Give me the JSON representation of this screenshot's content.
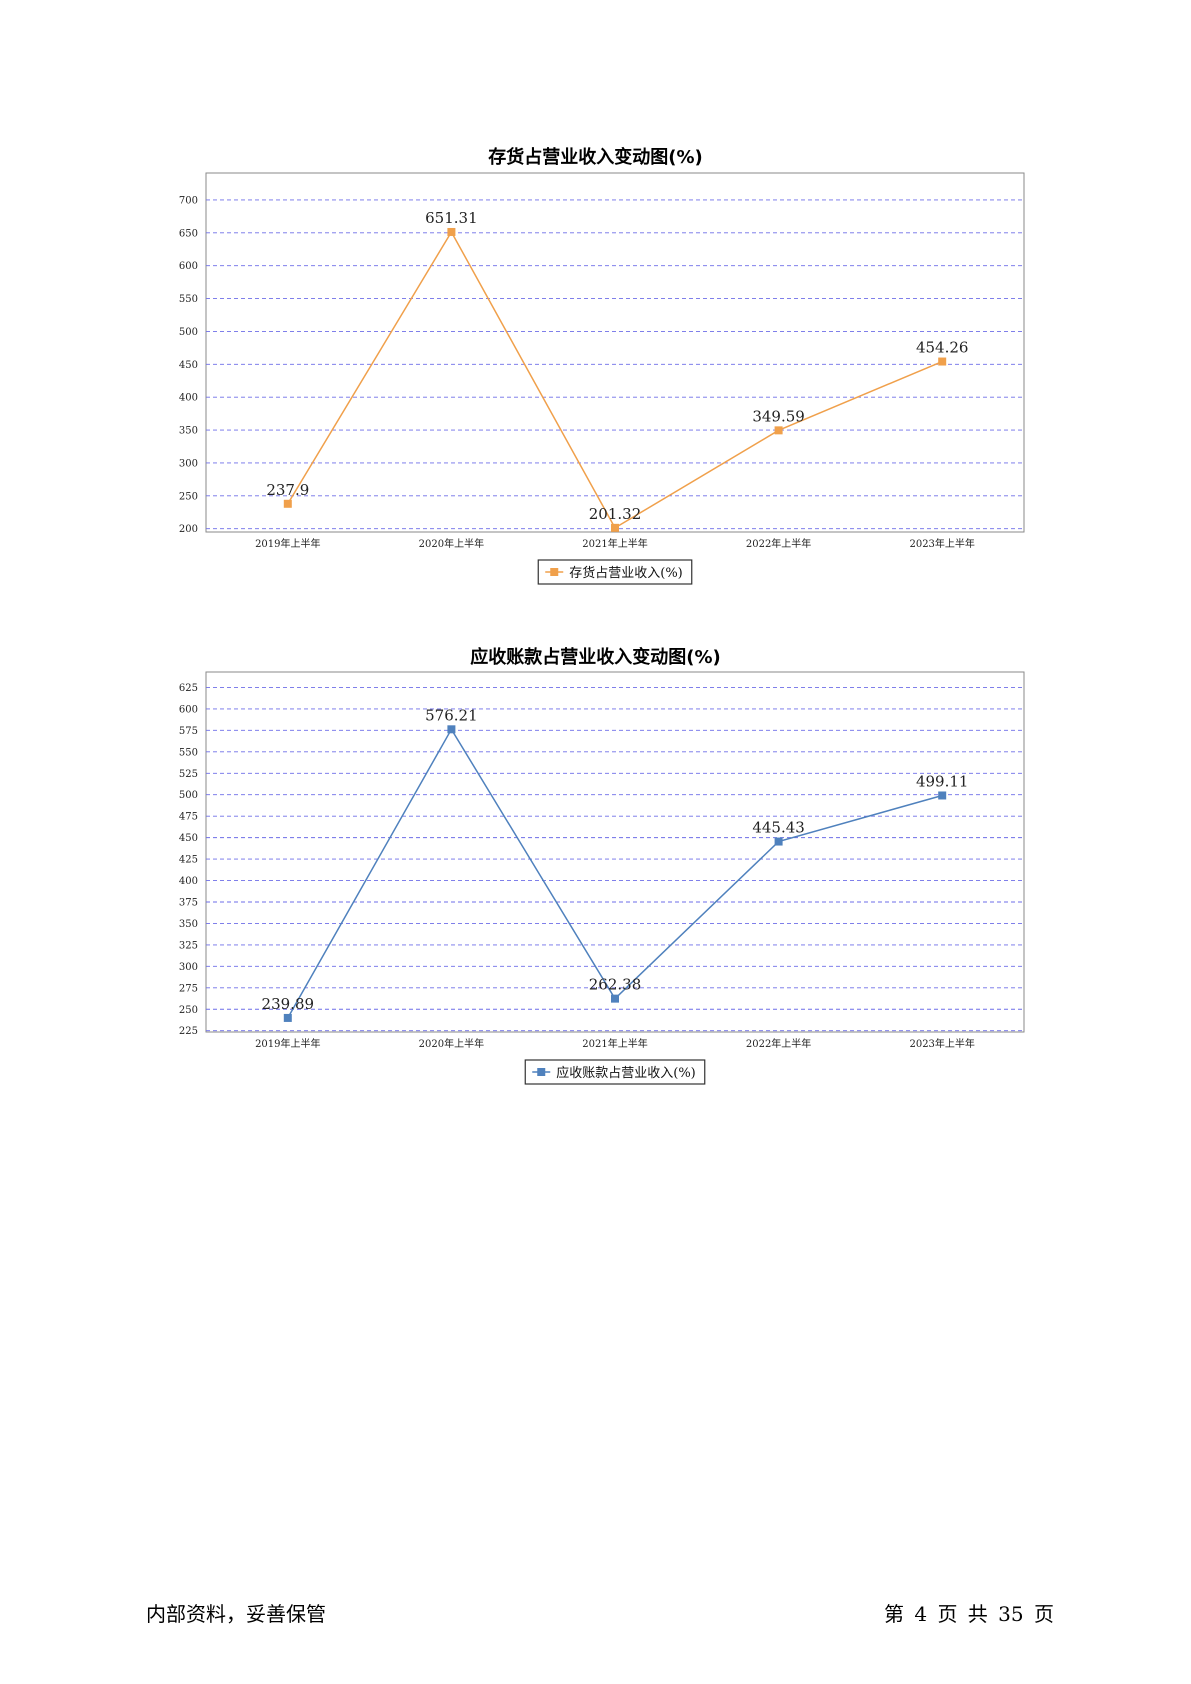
{
  "chart_data": [
    {
      "type": "line",
      "title": "存货占营业收入变动图(%)",
      "categories": [
        "2019年上半年",
        "2020年上半年",
        "2021年上半年",
        "2022年上半年",
        "2023年上半年"
      ],
      "series": [
        {
          "name": "存货占营业收入(%)",
          "values": [
            237.9,
            651.31,
            201.32,
            349.59,
            454.26
          ],
          "labels": [
            "237.9",
            "651.31",
            "201.32",
            "349.59",
            "454.26"
          ],
          "color": "#F0A04B"
        }
      ],
      "ylim": [
        195,
        741
      ],
      "yticks": [
        200,
        250,
        300,
        350,
        400,
        450,
        500,
        550,
        600,
        650,
        700
      ],
      "grid": true,
      "legend": "bottom"
    },
    {
      "type": "line",
      "title": "应收账款占营业收入变动图(%)",
      "categories": [
        "2019年上半年",
        "2020年上半年",
        "2021年上半年",
        "2022年上半年",
        "2023年上半年"
      ],
      "series": [
        {
          "name": "应收账款占营业收入(%)",
          "values": [
            239.89,
            576.21,
            262.38,
            445.43,
            499.11
          ],
          "labels": [
            "239.89",
            "576.21",
            "262.38",
            "445.43",
            "499.11"
          ],
          "color": "#4F81BD"
        }
      ],
      "ylim": [
        223.5,
        643
      ],
      "yticks": [
        225,
        250,
        275,
        300,
        325,
        350,
        375,
        400,
        425,
        450,
        475,
        500,
        525,
        550,
        575,
        600,
        625
      ],
      "grid": true,
      "legend": "bottom"
    }
  ],
  "footer": {
    "left": "内部资料，妥善保管",
    "right": "第 4 页  共 35 页"
  }
}
